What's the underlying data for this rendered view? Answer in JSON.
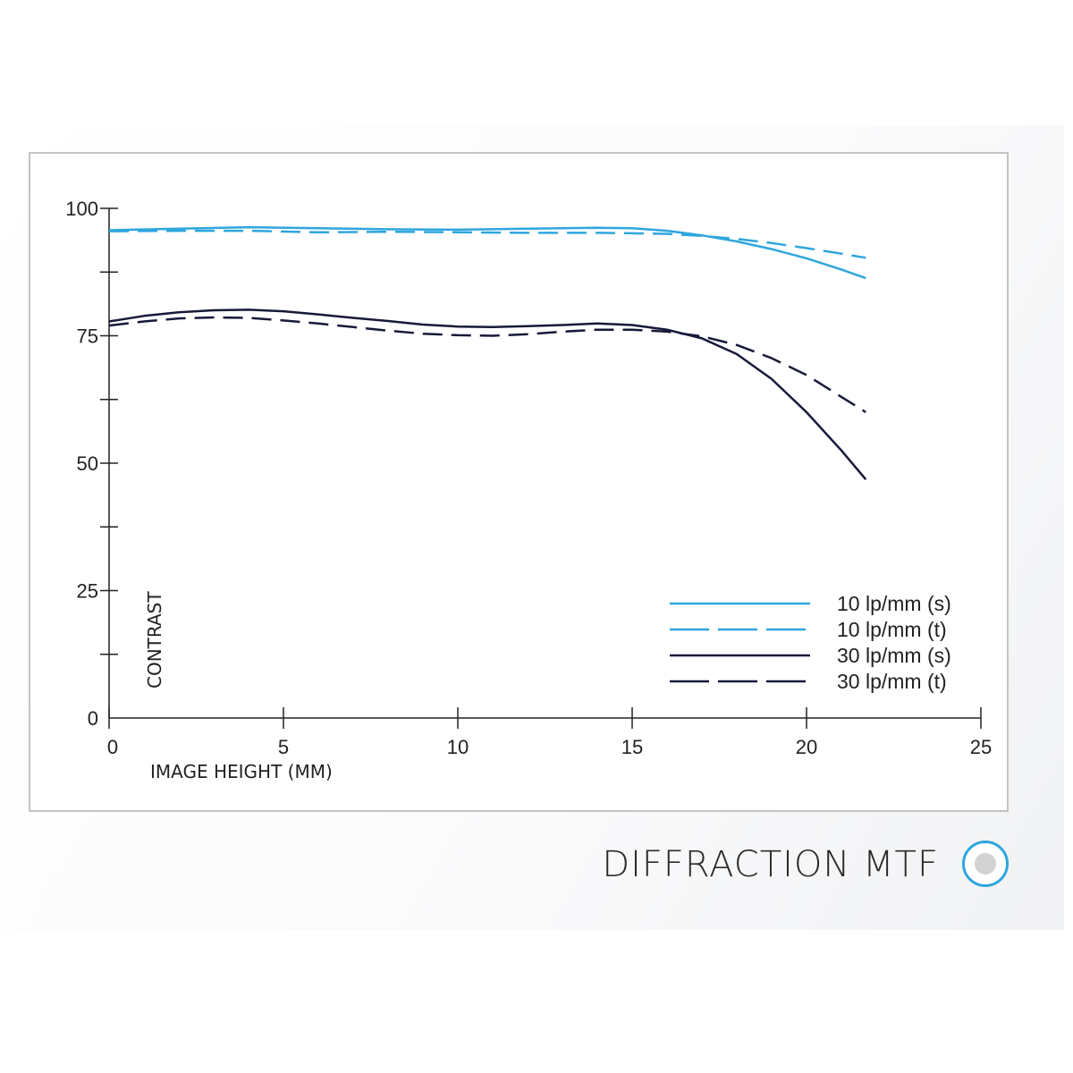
{
  "chart_data": {
    "type": "line",
    "xlabel": "IMAGE HEIGHT (MM)",
    "ylabel": "CONTRAST",
    "xlim": [
      0,
      25
    ],
    "ylim": [
      0,
      100
    ],
    "xticks": [
      0,
      5,
      10,
      15,
      20,
      25
    ],
    "yticks": [
      0,
      25,
      50,
      75,
      100
    ],
    "grid": false,
    "legend_position": "bottom-right",
    "series": [
      {
        "name": "10 lp/mm (s)",
        "color": "#2ea6dd",
        "dash": "solid",
        "x": [
          0,
          2,
          4,
          6,
          8,
          10,
          12,
          14,
          15,
          16,
          17,
          18,
          19,
          20,
          21,
          21.7
        ],
        "y": [
          95.7,
          96.0,
          96.3,
          96.1,
          95.9,
          95.8,
          96.0,
          96.2,
          96.1,
          95.6,
          94.7,
          93.5,
          92.0,
          90.2,
          88.0,
          86.3
        ]
      },
      {
        "name": "10 lp/mm (t)",
        "color": "#2ea6dd",
        "dash": "dashed",
        "x": [
          0,
          2,
          4,
          6,
          8,
          10,
          12,
          14,
          15,
          16,
          17,
          18,
          19,
          20,
          21,
          21.7
        ],
        "y": [
          95.5,
          95.6,
          95.6,
          95.3,
          95.4,
          95.3,
          95.2,
          95.2,
          95.1,
          95.0,
          94.6,
          94.0,
          93.2,
          92.2,
          91.1,
          90.3
        ]
      },
      {
        "name": "30 lp/mm (s)",
        "color": "#17193a",
        "dash": "solid",
        "x": [
          0,
          1,
          2,
          3,
          4,
          5,
          6,
          7,
          8,
          9,
          10,
          11,
          12,
          13,
          14,
          15,
          16,
          17,
          18,
          19,
          20,
          21,
          21.7
        ],
        "y": [
          77.8,
          78.9,
          79.6,
          80.0,
          80.1,
          79.8,
          79.2,
          78.5,
          77.9,
          77.2,
          76.8,
          76.7,
          76.9,
          77.1,
          77.4,
          77.1,
          76.2,
          74.5,
          71.4,
          66.5,
          60.0,
          52.5,
          46.8
        ]
      },
      {
        "name": "30 lp/mm (t)",
        "color": "#17193a",
        "dash": "dashed",
        "x": [
          0,
          1,
          2,
          3,
          4,
          5,
          6,
          7,
          8,
          9,
          10,
          11,
          12,
          13,
          14,
          15,
          16,
          17,
          18,
          19,
          20,
          21,
          21.7
        ],
        "y": [
          77.0,
          77.8,
          78.4,
          78.6,
          78.5,
          78.0,
          77.4,
          76.7,
          76.0,
          75.4,
          75.1,
          75.0,
          75.3,
          75.8,
          76.2,
          76.2,
          75.8,
          74.9,
          73.2,
          70.6,
          67.3,
          63.0,
          60.0
        ]
      }
    ]
  },
  "footer": {
    "title": "DIFFRACTION MTF"
  }
}
